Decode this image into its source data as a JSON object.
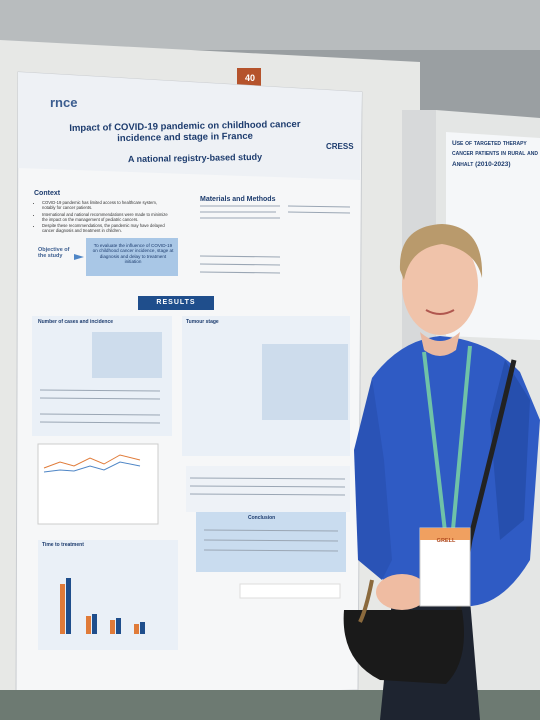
{
  "board_number": "40",
  "poster": {
    "logo": "rnce",
    "brand": "CRESS",
    "title": "Impact of COVID-19 pandemic on childhood cancer incidence and stage in France",
    "subtitle": "A national registry-based study",
    "context": {
      "heading": "Context",
      "bullets": [
        "COVID-19 pandemic has limited access to healthcare system, notably for cancer patients.",
        "International and national recommendations were made to minimize the impact on the management of pediatric cancers.",
        "Despite these recommendations, the pandemic may have delayed cancer diagnosis and treatment in children."
      ]
    },
    "methods_heading": "Materials and Methods",
    "objective": {
      "label": "Objective of the study",
      "text": "To evaluate the influence of COVID-19 on childhood cancer incidence, stage at diagnosis and delay to treatment initiation"
    },
    "results": {
      "banner": "RESULTS",
      "panels": [
        "Number of cases and incidence",
        "Tumour stage",
        "Time to treatment",
        "Conclusion"
      ]
    }
  },
  "neighbor_poster": {
    "title_lines": [
      "Use of targeted therapy",
      "cancer patients in rural and",
      "Anhalt (2010-2023)"
    ]
  },
  "badge": {
    "name": "GRELL"
  }
}
